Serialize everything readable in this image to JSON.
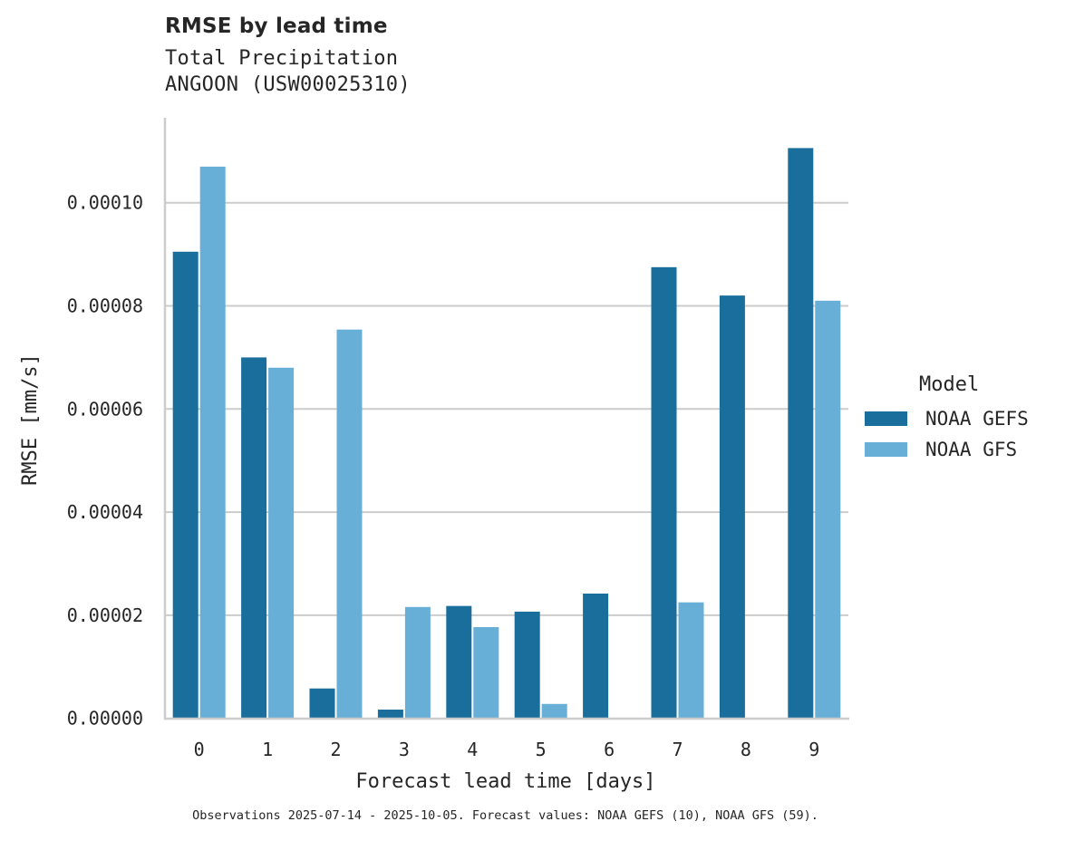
{
  "header": {
    "title": "RMSE by lead time",
    "subtitle_line1": "Total Precipitation",
    "subtitle_line2": "ANGOON (USW00025310)"
  },
  "legend": {
    "title": "Model",
    "items": [
      {
        "label": "NOAA GEFS",
        "color": "#1a6e9c"
      },
      {
        "label": "NOAA GFS",
        "color": "#67afd7"
      }
    ]
  },
  "footer": {
    "text": "Observations 2025-07-14 - 2025-10-05. Forecast values: NOAA GEFS (10), NOAA GFS (59)."
  },
  "chart_data": {
    "type": "bar",
    "title": "RMSE by lead time",
    "subtitle": "Total Precipitation\nANGOON (USW00025310)",
    "xlabel": "Forecast lead time [days]",
    "ylabel": "RMSE [mm/s]",
    "categories": [
      "0",
      "1",
      "2",
      "3",
      "4",
      "5",
      "6",
      "7",
      "8",
      "9"
    ],
    "series": [
      {
        "name": "NOAA GEFS",
        "color": "#1a6e9c",
        "values": [
          9.05e-05,
          7e-05,
          5.8e-06,
          1.7e-06,
          2.18e-05,
          2.07e-05,
          2.42e-05,
          8.75e-05,
          8.2e-05,
          0.0001106
        ]
      },
      {
        "name": "NOAA GFS",
        "color": "#67afd7",
        "values": [
          0.000107,
          6.8e-05,
          7.54e-05,
          2.16e-05,
          1.77e-05,
          2.8e-06,
          null,
          2.25e-05,
          null,
          8.1e-05
        ]
      }
    ],
    "yticks": [
      "0.00000",
      "0.00002",
      "0.00004",
      "0.00006",
      "0.00008",
      "0.00010"
    ],
    "ytick_values": [
      0,
      2e-05,
      4e-05,
      6e-05,
      8e-05,
      0.0001
    ],
    "ylim": [
      0,
      0.000116
    ],
    "grid": "y",
    "legend_position": "right"
  }
}
